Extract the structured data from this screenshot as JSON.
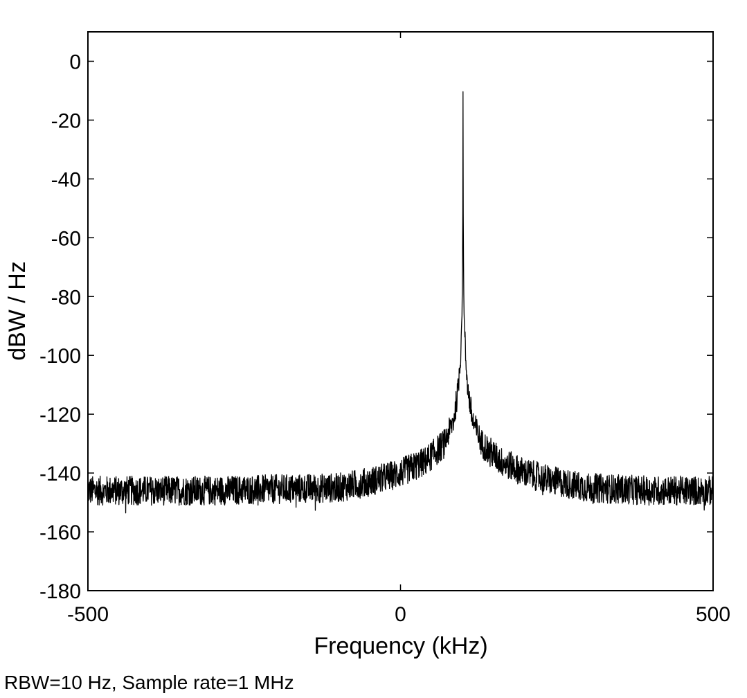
{
  "chart_data": {
    "type": "line",
    "title": "",
    "xlabel": "Frequency (kHz)",
    "ylabel": "dBW / Hz",
    "xlim": [
      -500,
      500
    ],
    "ylim": [
      -180,
      10
    ],
    "x_ticks": [
      -500,
      0,
      500
    ],
    "y_ticks": [
      0,
      -20,
      -40,
      -60,
      -80,
      -100,
      -120,
      -140,
      -160,
      -180
    ],
    "grid": false,
    "series": [
      {
        "color": "#000000",
        "noise_floor_db": -146,
        "noise_band_db": 5,
        "peak_frequency_khz": 100,
        "peak_level_db": -10,
        "points": [
          [
            -500,
            -146
          ],
          [
            -400,
            -146
          ],
          [
            -300,
            -146
          ],
          [
            -200,
            -145.5
          ],
          [
            -100,
            -145
          ],
          [
            -50,
            -143
          ],
          [
            0,
            -140
          ],
          [
            40,
            -136
          ],
          [
            70,
            -130
          ],
          [
            85,
            -122
          ],
          [
            92,
            -112
          ],
          [
            96,
            -100
          ],
          [
            98.5,
            -85
          ],
          [
            99.5,
            -60
          ],
          [
            100,
            -10
          ],
          [
            100.5,
            -60
          ],
          [
            101.5,
            -85
          ],
          [
            104,
            -100
          ],
          [
            108,
            -112
          ],
          [
            115,
            -122
          ],
          [
            130,
            -130
          ],
          [
            160,
            -136
          ],
          [
            200,
            -140
          ],
          [
            250,
            -143
          ],
          [
            300,
            -145
          ],
          [
            400,
            -146
          ],
          [
            500,
            -146
          ]
        ]
      }
    ]
  },
  "footnote": "RBW=10 Hz, Sample rate=1 MHz"
}
